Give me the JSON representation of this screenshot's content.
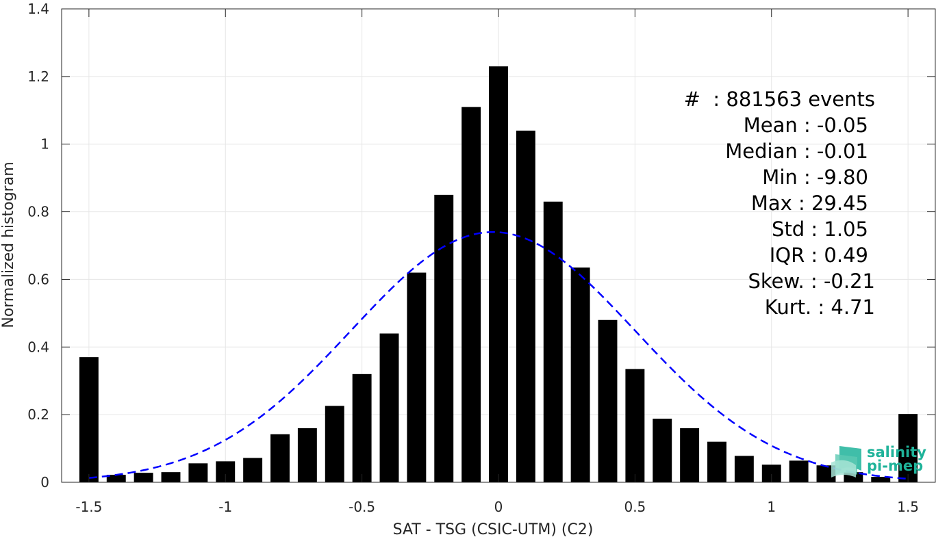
{
  "chart_data": {
    "type": "bar",
    "xlabel": "SAT - TSG (CSIC-UTM) (C2)",
    "ylabel": "Normalized histogram",
    "xlim": [
      -1.6,
      1.6
    ],
    "ylim": [
      0,
      1.4
    ],
    "xticks": [
      -1.5,
      -1,
      -0.5,
      0,
      0.5,
      1,
      1.5
    ],
    "xtick_labels": [
      "-1.5",
      "-1",
      "-0.5",
      "0",
      "0.5",
      "1",
      "1.5"
    ],
    "yticks": [
      0,
      0.2,
      0.4,
      0.6,
      0.8,
      1,
      1.2,
      1.4
    ],
    "ytick_labels": [
      "0",
      "0.2",
      "0.4",
      "0.6",
      "0.8",
      "1",
      "1.2",
      "1.4"
    ],
    "grid": true,
    "bar_width": 0.07,
    "bars": {
      "x": [
        -1.5,
        -1.4,
        -1.3,
        -1.2,
        -1.1,
        -1.0,
        -0.9,
        -0.8,
        -0.7,
        -0.6,
        -0.5,
        -0.4,
        -0.3,
        -0.2,
        -0.1,
        0.0,
        0.1,
        0.2,
        0.3,
        0.4,
        0.5,
        0.6,
        0.7,
        0.8,
        0.9,
        1.0,
        1.1,
        1.2,
        1.3,
        1.4,
        1.5
      ],
      "values": [
        0.37,
        0.022,
        0.028,
        0.03,
        0.056,
        0.062,
        0.072,
        0.142,
        0.16,
        0.226,
        0.32,
        0.44,
        0.62,
        0.85,
        1.11,
        1.23,
        1.04,
        0.83,
        0.635,
        0.48,
        0.335,
        0.188,
        0.16,
        0.12,
        0.078,
        0.052,
        0.064,
        0.05,
        0.03,
        0.016,
        0.202
      ],
      "color": "#000000"
    },
    "fit": {
      "type": "gaussian",
      "mean": -0.02,
      "peak": 0.74,
      "sigma": 0.52,
      "x_range": [
        -1.5,
        1.5
      ],
      "color": "#0000ff",
      "style": "dashed"
    }
  },
  "stats": {
    "lines": [
      "#  : 881563 events",
      "Mean : -0.05",
      "Median : -0.01",
      "Min : -9.80",
      "Max : 29.45",
      "Std : 1.05",
      "IQR : 0.49",
      "Skew. : -0.21",
      "Kurt. : 4.71"
    ]
  },
  "logo": {
    "line1": "salinity",
    "line2": "pi-mep",
    "color": "#1fb39a"
  }
}
